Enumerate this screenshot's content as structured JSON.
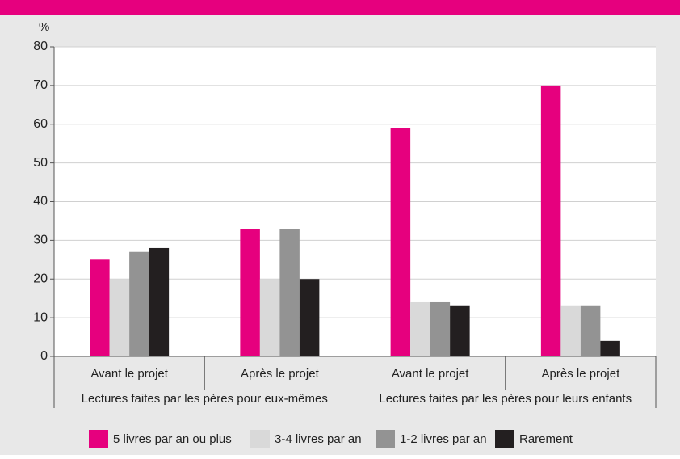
{
  "chart_data": {
    "type": "bar",
    "y_label": "%",
    "categories": [
      "Avant le projet",
      "Après le projet",
      "Avant le projet",
      "Après le projet"
    ],
    "category_groups": [
      "Lectures faites par les pères pour eux-mêmes",
      "Lectures faites par les pères pour leurs enfants"
    ],
    "series": [
      {
        "name": "5 livres par an ou plus",
        "color": "#e6007e",
        "values": [
          25,
          33,
          59,
          70
        ]
      },
      {
        "name": "3-4 livres par an",
        "color": "#d9d9d9",
        "values": [
          20,
          20,
          14,
          13
        ]
      },
      {
        "name": "1-2 livres par an",
        "color": "#939393",
        "values": [
          27,
          33,
          14,
          13
        ]
      },
      {
        "name": "Rarement",
        "color": "#231f20",
        "values": [
          28,
          20,
          13,
          4
        ]
      }
    ],
    "ylim": [
      0,
      80
    ],
    "yticks": [
      0,
      10,
      20,
      30,
      40,
      50,
      60,
      70,
      80
    ],
    "grid": true,
    "legend": "bottom"
  }
}
